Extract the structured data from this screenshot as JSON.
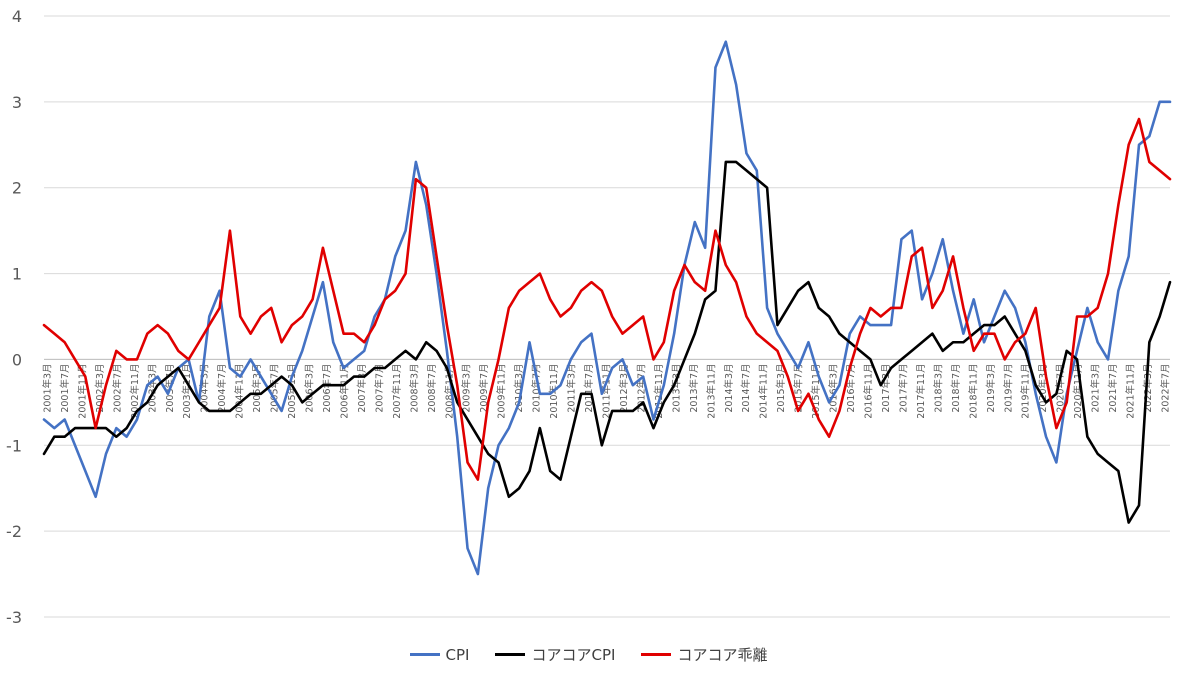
{
  "chart_data": {
    "type": "line",
    "title": "",
    "xlabel": "",
    "ylabel": "",
    "ylim": [
      -3,
      4
    ],
    "yticks": [
      4,
      3,
      2,
      1,
      0,
      -1,
      -2,
      -3
    ],
    "grid": true,
    "legend_position": "bottom",
    "x_tick_labels": [
      "2001年3月",
      "2001年7月",
      "2001年11月",
      "2002年3月",
      "2002年7月",
      "2002年11月",
      "2003年3月",
      "2003年7月",
      "2003年11月",
      "2004年3月",
      "2004年7月",
      "2004年11月",
      "2005年3月",
      "2005年7月",
      "2005年11月",
      "2006年3月",
      "2006年7月",
      "2006年11月",
      "2007年3月",
      "2007年7月",
      "2007年11月",
      "2008年3月",
      "2008年7月",
      "2008年11月",
      "2009年3月",
      "2009年7月",
      "2009年11月",
      "2010年3月",
      "2010年7月",
      "2010年11月",
      "2011年3月",
      "2011年7月",
      "2011年11月",
      "2012年3月",
      "2012年7月",
      "2012年11月",
      "2013年3月",
      "2013年7月",
      "2013年11月",
      "2014年3月",
      "2014年7月",
      "2014年11月",
      "2015年3月",
      "2015年7月",
      "2015年11月",
      "2016年3月",
      "2016年7月",
      "2016年11月",
      "2017年3月",
      "2017年7月",
      "2017年11月",
      "2018年3月",
      "2018年7月",
      "2018年11月",
      "2019年3月",
      "2019年7月",
      "2019年11月",
      "2020年3月",
      "2020年7月",
      "2020年11月",
      "2021年3月",
      "2021年7月",
      "2021年11月",
      "2022年3月",
      "2022年7月"
    ],
    "series": [
      {
        "name": "CPI",
        "color": "#4472C4",
        "values": [
          -0.7,
          -0.8,
          -0.7,
          -1.0,
          -1.3,
          -1.6,
          -1.1,
          -0.8,
          -0.9,
          -0.7,
          -0.3,
          -0.2,
          -0.4,
          -0.1,
          0.0,
          -0.5,
          0.5,
          0.8,
          -0.1,
          -0.2,
          0.0,
          -0.2,
          -0.4,
          -0.6,
          -0.2,
          0.1,
          0.5,
          0.9,
          0.2,
          -0.1,
          0.0,
          0.1,
          0.5,
          0.7,
          1.2,
          1.5,
          2.3,
          1.8,
          1.0,
          0.1,
          -0.9,
          -2.2,
          -2.5,
          -1.5,
          -1.0,
          -0.8,
          -0.5,
          0.2,
          -0.4,
          -0.4,
          -0.3,
          0.0,
          0.2,
          0.3,
          -0.4,
          -0.1,
          0.0,
          -0.3,
          -0.2,
          -0.7,
          -0.3,
          0.3,
          1.1,
          1.6,
          1.3,
          3.4,
          3.7,
          3.2,
          2.4,
          2.2,
          0.6,
          0.3,
          0.1,
          -0.1,
          0.2,
          -0.2,
          -0.5,
          -0.3,
          0.3,
          0.5,
          0.4,
          0.4,
          0.4,
          1.4,
          1.5,
          0.7,
          1.0,
          1.4,
          0.8,
          0.3,
          0.7,
          0.2,
          0.5,
          0.8,
          0.6,
          0.2,
          -0.4,
          -0.9,
          -1.2,
          -0.4,
          0.1,
          0.6,
          0.2,
          0.0,
          0.8,
          1.2,
          2.5,
          2.6,
          3.0,
          3.0
        ]
      },
      {
        "name": "コアコアCPI",
        "color": "#000000",
        "values": [
          -1.1,
          -0.9,
          -0.9,
          -0.8,
          -0.8,
          -0.8,
          -0.8,
          -0.9,
          -0.8,
          -0.6,
          -0.5,
          -0.3,
          -0.2,
          -0.1,
          -0.3,
          -0.5,
          -0.6,
          -0.6,
          -0.6,
          -0.5,
          -0.4,
          -0.4,
          -0.3,
          -0.2,
          -0.3,
          -0.5,
          -0.4,
          -0.3,
          -0.3,
          -0.3,
          -0.2,
          -0.2,
          -0.1,
          -0.1,
          0.0,
          0.1,
          0.0,
          0.2,
          0.1,
          -0.1,
          -0.5,
          -0.7,
          -0.9,
          -1.1,
          -1.2,
          -1.6,
          -1.5,
          -1.3,
          -0.8,
          -1.3,
          -1.4,
          -0.9,
          -0.4,
          -0.4,
          -1.0,
          -0.6,
          -0.6,
          -0.6,
          -0.5,
          -0.8,
          -0.5,
          -0.3,
          0.0,
          0.3,
          0.7,
          0.8,
          2.3,
          2.3,
          2.2,
          2.1,
          2.0,
          0.4,
          0.6,
          0.8,
          0.9,
          0.6,
          0.5,
          0.3,
          0.2,
          0.1,
          0.0,
          -0.3,
          -0.1,
          0.0,
          0.1,
          0.2,
          0.3,
          0.1,
          0.2,
          0.2,
          0.3,
          0.4,
          0.4,
          0.5,
          0.3,
          0.1,
          -0.3,
          -0.5,
          -0.4,
          0.1,
          0.0,
          -0.9,
          -1.1,
          -1.2,
          -1.3,
          -1.9,
          -1.7,
          0.2,
          0.5,
          0.9
        ]
      },
      {
        "name": "コアコア乖離",
        "color": "#E00000",
        "values": [
          0.4,
          0.3,
          0.2,
          0.0,
          -0.2,
          -0.8,
          -0.3,
          0.1,
          0.0,
          0.0,
          0.3,
          0.4,
          0.3,
          0.1,
          0.0,
          0.2,
          0.4,
          0.6,
          1.5,
          0.5,
          0.3,
          0.5,
          0.6,
          0.2,
          0.4,
          0.5,
          0.7,
          1.3,
          0.8,
          0.3,
          0.3,
          0.2,
          0.4,
          0.7,
          0.8,
          1.0,
          2.1,
          2.0,
          1.2,
          0.4,
          -0.3,
          -1.2,
          -1.4,
          -0.5,
          0.0,
          0.6,
          0.8,
          0.9,
          1.0,
          0.7,
          0.5,
          0.6,
          0.8,
          0.9,
          0.8,
          0.5,
          0.3,
          0.4,
          0.5,
          0.0,
          0.2,
          0.8,
          1.1,
          0.9,
          0.8,
          1.5,
          1.1,
          0.9,
          0.5,
          0.3,
          0.2,
          0.1,
          -0.2,
          -0.6,
          -0.4,
          -0.7,
          -0.9,
          -0.6,
          -0.1,
          0.3,
          0.6,
          0.5,
          0.6,
          0.6,
          1.2,
          1.3,
          0.6,
          0.8,
          1.2,
          0.6,
          0.1,
          0.3,
          0.3,
          0.0,
          0.2,
          0.3,
          0.6,
          -0.2,
          -0.8,
          -0.5,
          0.5,
          0.5,
          0.6,
          1.0,
          1.8,
          2.5,
          2.8,
          2.3,
          2.2,
          2.1
        ]
      }
    ]
  }
}
